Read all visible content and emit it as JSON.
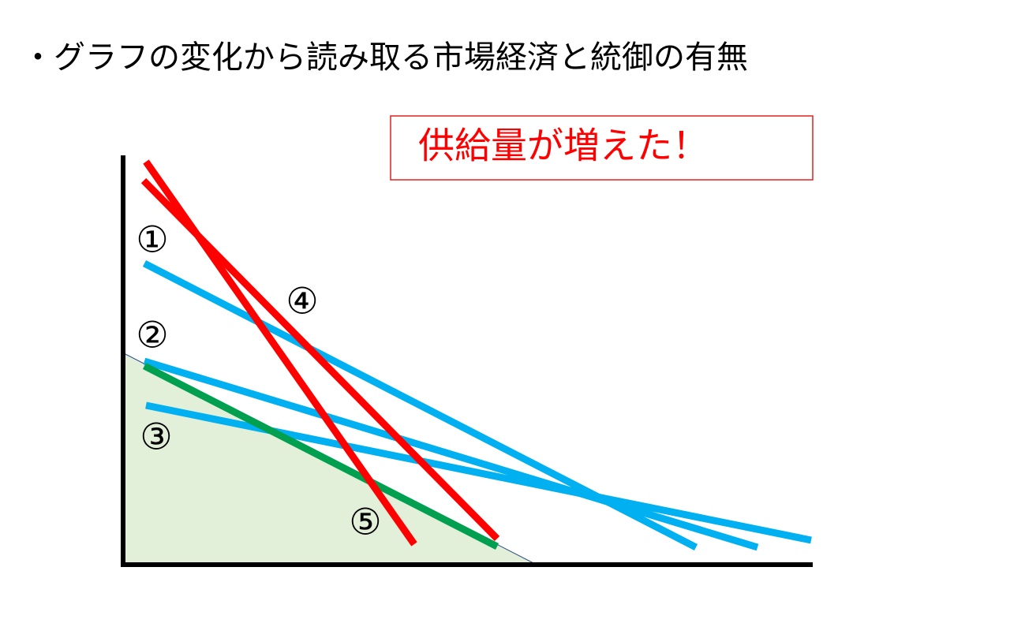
{
  "header": {
    "title": "・グラフの変化から読み取る市場経済と統御の有無"
  },
  "callout": {
    "text": "供給量が増えた！"
  },
  "labels": [
    "①",
    "②",
    "③",
    "④",
    "⑤"
  ]
}
